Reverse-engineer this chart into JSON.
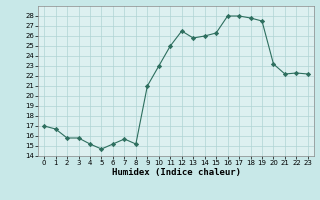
{
  "x": [
    0,
    1,
    2,
    3,
    4,
    5,
    6,
    7,
    8,
    9,
    10,
    11,
    12,
    13,
    14,
    15,
    16,
    17,
    18,
    19,
    20,
    21,
    22,
    23
  ],
  "y": [
    17.0,
    16.7,
    15.8,
    15.8,
    15.2,
    14.7,
    15.2,
    15.7,
    15.2,
    21.0,
    23.0,
    25.0,
    26.5,
    25.8,
    26.0,
    26.3,
    28.0,
    28.0,
    27.8,
    27.5,
    23.2,
    22.2,
    22.3,
    22.2
  ],
  "xlabel": "Humidex (Indice chaleur)",
  "xlim": [
    -0.5,
    23.5
  ],
  "ylim": [
    14,
    29
  ],
  "yticks": [
    14,
    15,
    16,
    17,
    18,
    19,
    20,
    21,
    22,
    23,
    24,
    25,
    26,
    27,
    28
  ],
  "xticks": [
    0,
    1,
    2,
    3,
    4,
    5,
    6,
    7,
    8,
    9,
    10,
    11,
    12,
    13,
    14,
    15,
    16,
    17,
    18,
    19,
    20,
    21,
    22,
    23
  ],
  "line_color": "#2d6e5e",
  "marker_color": "#2d6e5e",
  "bg_color": "#c8e8e8",
  "grid_color": "#b0d4d4",
  "axes_bg": "#ddf0f0"
}
